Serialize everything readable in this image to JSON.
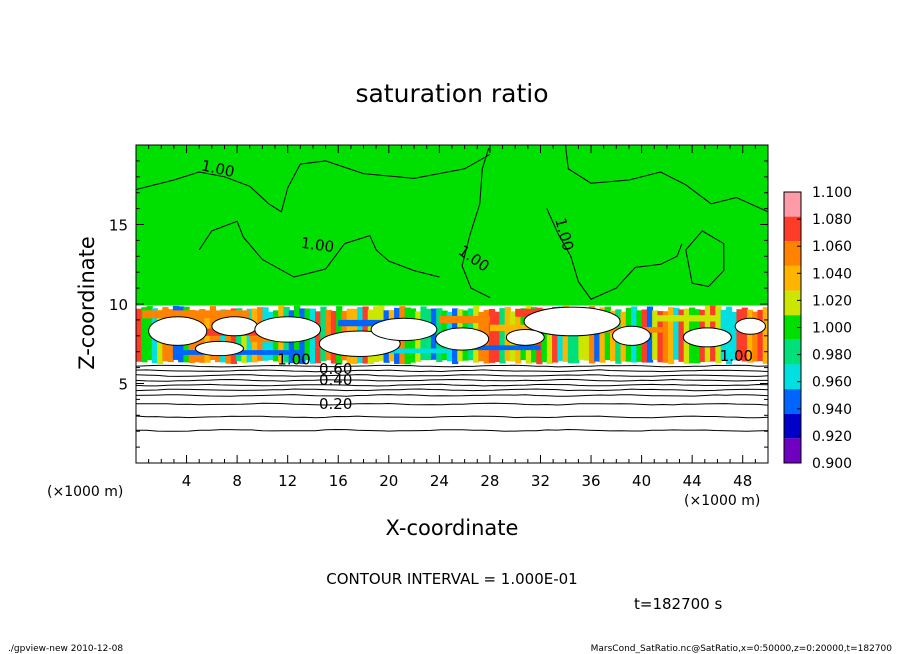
{
  "chart_data": {
    "type": "heatmap",
    "title": "saturation ratio",
    "xlabel": "X-coordinate",
    "ylabel": "Z-coordinate",
    "x_unit": "(×1000 m)",
    "y_unit": "(×1000 m)",
    "xlim": [
      0,
      50
    ],
    "ylim": [
      0,
      20
    ],
    "x_ticks": [
      4,
      8,
      12,
      16,
      20,
      24,
      28,
      32,
      36,
      40,
      44,
      48
    ],
    "y_ticks": [
      5,
      10,
      15
    ],
    "colorbar": {
      "levels": [
        "1.100",
        "1.080",
        "1.060",
        "1.040",
        "1.020",
        "1.000",
        "0.980",
        "0.960",
        "0.940",
        "0.920",
        "0.900"
      ],
      "colors": [
        "#ff9aa8",
        "#ff3c28",
        "#ff8200",
        "#ffb400",
        "#cce600",
        "#00e000",
        "#00e07a",
        "#00e0e0",
        "#0064ff",
        "#0000c8",
        "#7000c0"
      ]
    },
    "contour_labels": [
      {
        "text": "1.00",
        "x": 6.4,
        "z": 18.2,
        "angle": 12
      },
      {
        "text": "1.00",
        "x": 14.3,
        "z": 13.4,
        "angle": 8
      },
      {
        "text": "1.00",
        "x": 26.5,
        "z": 12.6,
        "angle": 35
      },
      {
        "text": "1.00",
        "x": 33.5,
        "z": 14.3,
        "angle": 75
      },
      {
        "text": "1.00",
        "x": 12.5,
        "z": 6.2,
        "angle": 0
      },
      {
        "text": "1.00",
        "x": 47.5,
        "z": 6.4,
        "angle": 0
      },
      {
        "text": "0.60",
        "x": 15.8,
        "z": 5.6,
        "angle": 0
      },
      {
        "text": "0.40",
        "x": 15.8,
        "z": 4.9,
        "angle": 0
      },
      {
        "text": "0.20",
        "x": 15.8,
        "z": 3.4,
        "angle": 0
      }
    ],
    "contour_interval": "CONTOUR INTERVAL = 1.000E-01",
    "time_label": "t=182700 s"
  },
  "footer": {
    "left": "./gpview-new  2010-12-08",
    "right": "MarsCond_SatRatio.nc@SatRatio,x=0:50000,z=0:20000,t=182700"
  },
  "colors": {
    "background": "#ffffff",
    "saturated": "#00e000",
    "subsaturated": "#ffffff"
  }
}
